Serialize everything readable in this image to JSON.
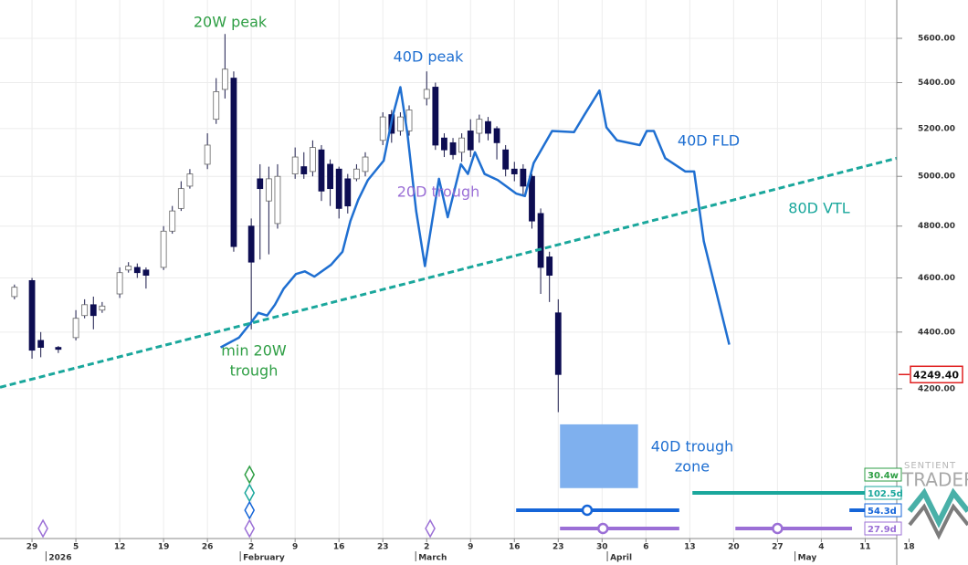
{
  "chart_data": {
    "type": "candlestick",
    "log_scale": true,
    "grid": true,
    "ylim": [
      3714,
      5779
    ],
    "xlim": [
      -3.65,
      98.6
    ],
    "yticks": [
      {
        "value": 5600,
        "label": "5600.00"
      },
      {
        "value": 5400,
        "label": "5400.00"
      },
      {
        "value": 5200,
        "label": "5200.00"
      },
      {
        "value": 5000,
        "label": "5000.00"
      },
      {
        "value": 4800,
        "label": "4800.00"
      },
      {
        "value": 4600,
        "label": "4600.00"
      },
      {
        "value": 4400,
        "label": "4400.00"
      },
      {
        "value": 4200,
        "label": "4200.00"
      }
    ],
    "xticks": [
      {
        "value": 0,
        "label": "29"
      },
      {
        "value": 5,
        "label": "5"
      },
      {
        "value": 10,
        "label": "12"
      },
      {
        "value": 15,
        "label": "19"
      },
      {
        "value": 20,
        "label": "26"
      },
      {
        "value": 25,
        "label": "2"
      },
      {
        "value": 30,
        "label": "9"
      },
      {
        "value": 35,
        "label": "16"
      },
      {
        "value": 40,
        "label": "23"
      },
      {
        "value": 45,
        "label": "2"
      },
      {
        "value": 50,
        "label": "9"
      },
      {
        "value": 55,
        "label": "16"
      },
      {
        "value": 60,
        "label": "23"
      },
      {
        "value": 65,
        "label": "30"
      },
      {
        "value": 70,
        "label": "6"
      },
      {
        "value": 75,
        "label": "13"
      },
      {
        "value": 80,
        "label": "20"
      },
      {
        "value": 85,
        "label": "27"
      },
      {
        "value": 90,
        "label": "4"
      },
      {
        "value": 95,
        "label": "11"
      },
      {
        "value": 100,
        "label": "18"
      }
    ],
    "month_ticks": [
      {
        "value": 1.6,
        "label": "2026"
      },
      {
        "value": 23.75,
        "label": "February"
      },
      {
        "value": 43.75,
        "label": "March"
      },
      {
        "value": 65.6,
        "label": "April"
      },
      {
        "value": 87,
        "label": "May"
      }
    ],
    "candles": {
      "up_color": "#ffffff",
      "down_color": "#0d0d52",
      "wick_color": "#1a1a4a",
      "x": [
        -2,
        0,
        1,
        3,
        5,
        6,
        7,
        8,
        10,
        11,
        12,
        13,
        15,
        16,
        17,
        18,
        20,
        21,
        22,
        23,
        25,
        26,
        27,
        28,
        30,
        31,
        32,
        33,
        34,
        35,
        36,
        37,
        38,
        40,
        41,
        42,
        43,
        45,
        46,
        47,
        48,
        49,
        50,
        51,
        52,
        53,
        54,
        55,
        56,
        57,
        58,
        59,
        60
      ],
      "open": [
        4530,
        4590,
        4370,
        4345,
        4380,
        4460,
        4500,
        4480,
        4540,
        4630,
        4640,
        4630,
        4640,
        4780,
        4870,
        4960,
        5050,
        5240,
        5370,
        5420,
        4800,
        4990,
        4900,
        4810,
        5010,
        5040,
        5020,
        5110,
        5050,
        5030,
        4990,
        4990,
        5020,
        5150,
        5260,
        5190,
        5190,
        5330,
        5380,
        5160,
        5140,
        5100,
        5190,
        5180,
        5230,
        5200,
        5110,
        5030,
        5030,
        5000,
        4850,
        4680,
        4470
      ],
      "high": [
        4575,
        4600,
        4400,
        4350,
        4480,
        4520,
        4530,
        4510,
        4640,
        4660,
        4655,
        4640,
        4800,
        4880,
        4980,
        5030,
        5180,
        5420,
        5620,
        5450,
        4830,
        5050,
        5040,
        5050,
        5120,
        5100,
        5150,
        5130,
        5070,
        5040,
        5010,
        5050,
        5100,
        5270,
        5280,
        5270,
        5300,
        5450,
        5400,
        5180,
        5160,
        5180,
        5240,
        5260,
        5250,
        5210,
        5130,
        5060,
        5050,
        5010,
        4870,
        4700,
        4520
      ],
      "low": [
        4520,
        4305,
        4310,
        4325,
        4370,
        4450,
        4410,
        4470,
        4525,
        4620,
        4600,
        4560,
        4630,
        4770,
        4860,
        4950,
        5030,
        5220,
        5330,
        4700,
        4410,
        4670,
        4690,
        4790,
        4990,
        4990,
        5000,
        4900,
        4880,
        4830,
        4850,
        4980,
        5000,
        5130,
        5140,
        5170,
        5170,
        5300,
        5110,
        5080,
        5070,
        5060,
        5080,
        5140,
        5150,
        5070,
        5000,
        4980,
        4920,
        4790,
        4540,
        4510,
        4120
      ],
      "close": [
        4565,
        4335,
        4345,
        4338,
        4450,
        4500,
        4460,
        4495,
        4620,
        4645,
        4620,
        4610,
        4780,
        4860,
        4950,
        5010,
        5130,
        5360,
        5460,
        4720,
        4660,
        4950,
        4990,
        5000,
        5080,
        5010,
        5120,
        4940,
        4950,
        4870,
        4880,
        5030,
        5080,
        5250,
        5180,
        5250,
        5280,
        5370,
        5130,
        5110,
        5090,
        5160,
        5110,
        5240,
        5180,
        5140,
        5030,
        5010,
        4960,
        4820,
        4640,
        4610,
        4249.4
      ]
    },
    "series": [
      {
        "name": "40D FLD",
        "color": "#1f6fd1",
        "x": [
          21.5,
          23.6,
          25.1,
          25.8,
          26.8,
          27.7,
          28.7,
          30.1,
          31.1,
          32.2,
          34.1,
          35.4,
          36.3,
          37.2,
          38.3,
          40.1,
          41.1,
          42.0,
          42.8,
          43.8,
          44.8,
          46.4,
          47.4,
          48.9,
          49.7,
          50.5,
          51.6,
          53.1,
          55.2,
          56.2,
          57.2,
          59.3,
          61.8,
          63.0,
          64.7,
          65.5,
          66.7,
          69.3,
          70.1,
          70.9,
          72.2,
          74.5,
          75.5,
          76.6,
          79.5
        ],
        "values": [
          4345,
          4380,
          4440,
          4470,
          4460,
          4500,
          4560,
          4615,
          4625,
          4605,
          4650,
          4700,
          4820,
          4905,
          4985,
          5065,
          5250,
          5380,
          5180,
          4860,
          4645,
          4990,
          4835,
          5050,
          5010,
          5100,
          5010,
          4985,
          4930,
          4920,
          5055,
          5190,
          5185,
          5260,
          5365,
          5205,
          5150,
          5130,
          5190,
          5190,
          5075,
          5020,
          5020,
          4740,
          4355
        ]
      },
      {
        "name": "80D VTL",
        "color": "#1aa79c",
        "dashed": true,
        "x": [
          -3.65,
          98.6
        ],
        "values": [
          4205,
          5075
        ]
      }
    ],
    "zones": [
      {
        "x": [
          60.2,
          69.1
        ],
        "y": [
          3871,
          4079
        ],
        "color": "#7fb0ee"
      }
    ],
    "last_price": {
      "value": 4249.4,
      "label": "4249.40",
      "color": "#e02020"
    },
    "annotations": [
      {
        "lines": [
          "20W peak"
        ],
        "color": "#2e9e44"
      },
      {
        "lines": [
          "40D peak"
        ],
        "color": "#1f6fd1"
      },
      {
        "lines": [
          "40D FLD"
        ],
        "color": "#1f6fd1"
      },
      {
        "lines": [
          "20D trough"
        ],
        "color": "#9b6fd6"
      },
      {
        "lines": [
          "80D VTL"
        ],
        "color": "#1aa79c"
      },
      {
        "lines": [
          "min 20W",
          "trough"
        ],
        "color": "#2e9e44"
      },
      {
        "lines": [
          "40D trough",
          "zone"
        ],
        "color": "#1f6fd1"
      }
    ],
    "cycles": [
      {
        "name": "30.4w",
        "color": "#2e9e44",
        "diamonds": [
          24.8
        ],
        "bars": []
      },
      {
        "name": "102.5d",
        "color": "#1aa79c",
        "diamonds": [
          24.8
        ],
        "bars": [
          {
            "x": [
              75.3,
              98.6
            ]
          }
        ]
      },
      {
        "name": "54.3d",
        "color": "#1565d8",
        "diamonds": [
          24.8
        ],
        "bars": [
          {
            "x": [
              55.2,
              73.8
            ],
            "center": 63.3
          },
          {
            "x": [
              93.2,
              98.6
            ]
          }
        ]
      },
      {
        "name": "27.9d",
        "color": "#9b6fd6",
        "diamonds": [
          1.25,
          24.8,
          45.4
        ],
        "bars": [
          {
            "x": [
              60.2,
              73.8
            ],
            "center": 65.1
          },
          {
            "x": [
              80.2,
              93.5
            ],
            "center": 85
          }
        ]
      }
    ],
    "logo": {
      "line1": "SENTIENT",
      "line2": "TRADER"
    }
  }
}
